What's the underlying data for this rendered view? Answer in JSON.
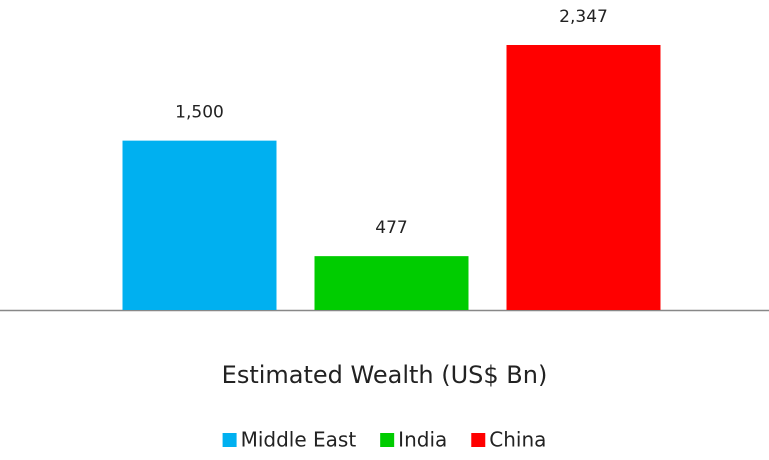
{
  "chart_data": {
    "type": "bar",
    "categories": [
      "Estimated Wealth (US$ Bn)"
    ],
    "series": [
      {
        "name": "Middle East",
        "color": "#00b0f0",
        "values": [
          1500
        ],
        "value_labels": [
          "1,500"
        ]
      },
      {
        "name": "India",
        "color": "#00cc00",
        "values": [
          477
        ],
        "value_labels": [
          "477"
        ]
      },
      {
        "name": "China",
        "color": "#ff0000",
        "values": [
          2347
        ],
        "value_labels": [
          "2,347"
        ]
      }
    ],
    "legend": "bottom"
  }
}
